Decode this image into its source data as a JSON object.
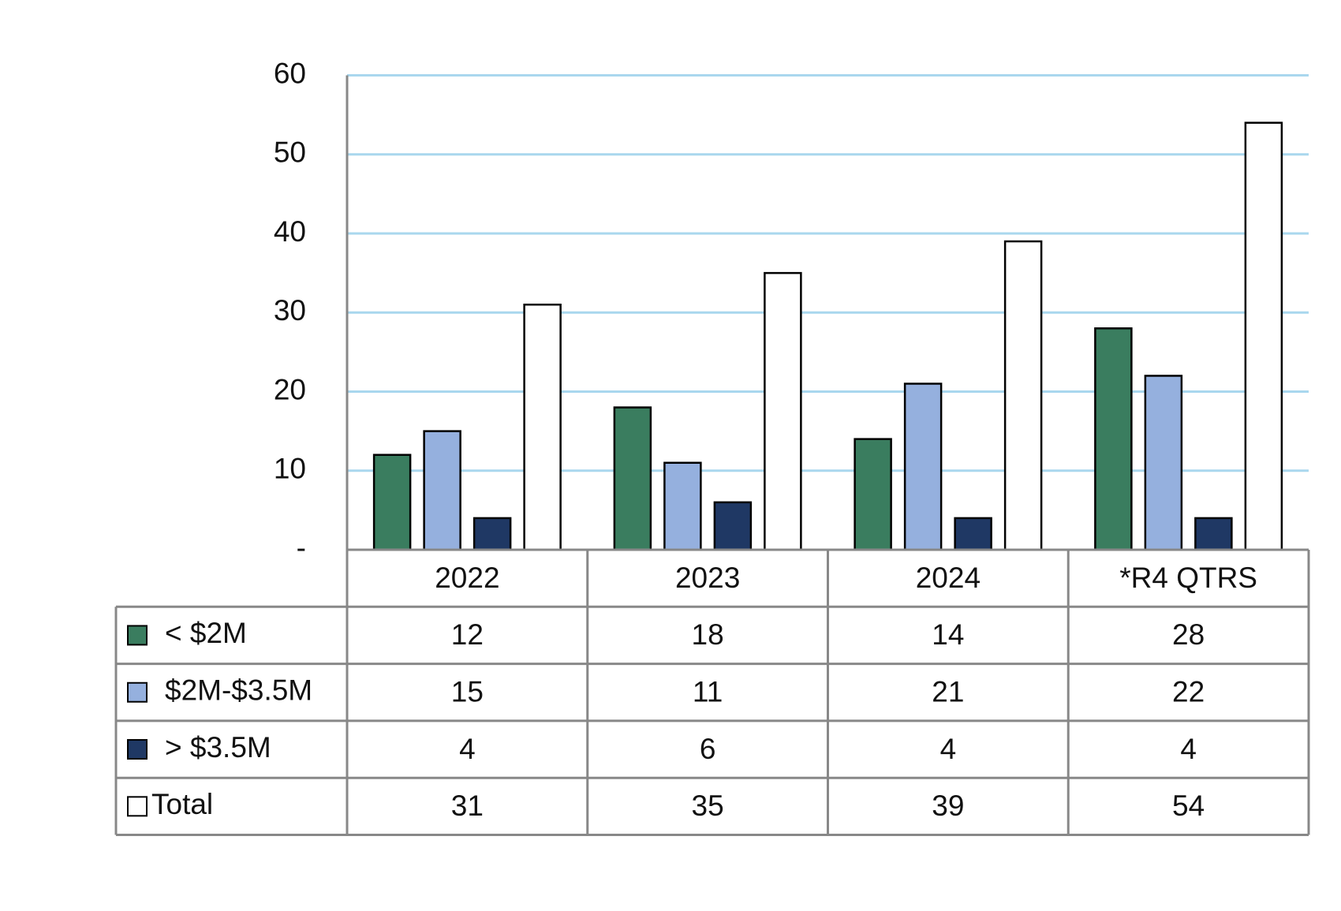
{
  "chart_data": {
    "type": "bar",
    "categories": [
      "2022",
      "2023",
      "2024",
      "*R4 QTRS"
    ],
    "series": [
      {
        "name": "< $2M",
        "color": "#3a7d5f",
        "values": [
          12,
          18,
          14,
          28
        ]
      },
      {
        "name": "$2M-$3.5M",
        "color": "#95b0de",
        "values": [
          15,
          11,
          21,
          22
        ]
      },
      {
        "name": "> $3.5M",
        "color": "#1f3864",
        "values": [
          4,
          6,
          4,
          4
        ]
      },
      {
        "name": "Total",
        "color": "#ffffff",
        "values": [
          31,
          35,
          39,
          54
        ]
      }
    ],
    "ylim": [
      0,
      60
    ],
    "yticks": [
      {
        "value": 0,
        "label": "-"
      },
      10,
      20,
      30,
      40,
      50,
      60
    ],
    "grid": true,
    "grid_color": "#a9d7ee",
    "data_table": true
  }
}
